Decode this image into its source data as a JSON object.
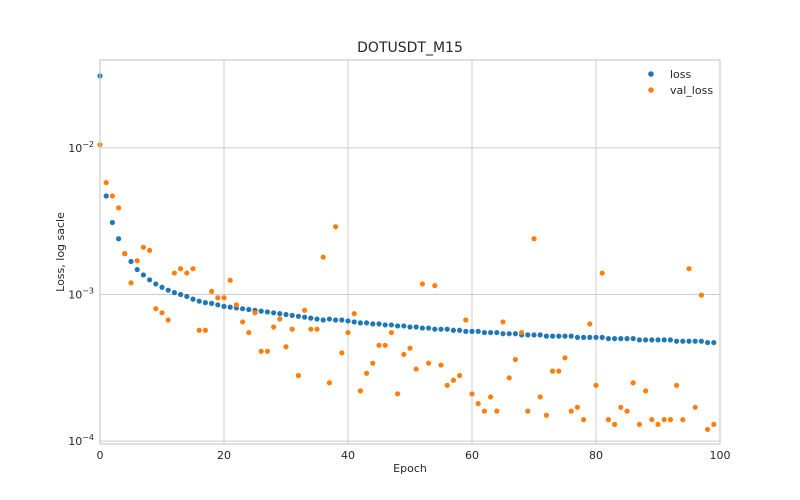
{
  "chart_data": {
    "type": "scatter",
    "title": "DOTUSDT_M15",
    "xlabel": "Epoch",
    "ylabel": "Loss, log sacle",
    "yscale": "log",
    "xlim": [
      0,
      100
    ],
    "ylim": [
      9.55e-05,
      0.0398
    ],
    "xticks": [
      0,
      20,
      40,
      60,
      80,
      100
    ],
    "xtick_labels": [
      "0",
      "20",
      "40",
      "60",
      "80",
      "100"
    ],
    "yticks": [
      0.0001,
      0.001,
      0.01
    ],
    "ytick_labels": [
      {
        "base": "10",
        "exp": "−4"
      },
      {
        "base": "10",
        "exp": "−3"
      },
      {
        "base": "10",
        "exp": "−2"
      }
    ],
    "grid": true,
    "legend_position": "top-right",
    "x": [
      0,
      1,
      2,
      3,
      4,
      5,
      6,
      7,
      8,
      9,
      10,
      11,
      12,
      13,
      14,
      15,
      16,
      17,
      18,
      19,
      20,
      21,
      22,
      23,
      24,
      25,
      26,
      27,
      28,
      29,
      30,
      31,
      32,
      33,
      34,
      35,
      36,
      37,
      38,
      39,
      40,
      41,
      42,
      43,
      44,
      45,
      46,
      47,
      48,
      49,
      50,
      51,
      52,
      53,
      54,
      55,
      56,
      57,
      58,
      59,
      60,
      61,
      62,
      63,
      64,
      65,
      66,
      67,
      68,
      69,
      70,
      71,
      72,
      73,
      74,
      75,
      76,
      77,
      78,
      79,
      80,
      81,
      82,
      83,
      84,
      85,
      86,
      87,
      88,
      89,
      90,
      91,
      92,
      93,
      94,
      95,
      96,
      97,
      98,
      99
    ],
    "series": [
      {
        "name": "loss",
        "color": "#1f77b4",
        "values": [
          0.031,
          0.0047,
          0.0031,
          0.0024,
          0.0019,
          0.00168,
          0.00148,
          0.00136,
          0.00126,
          0.00118,
          0.00112,
          0.00107,
          0.00103,
          0.001,
          0.00097,
          0.00093,
          0.0009,
          0.00088,
          0.00087,
          0.00085,
          0.00083,
          0.00082,
          0.00081,
          0.0008,
          0.00079,
          0.00078,
          0.00077,
          0.00076,
          0.00075,
          0.00074,
          0.00073,
          0.00072,
          0.00071,
          0.0007,
          0.00069,
          0.00068,
          0.00067,
          0.00068,
          0.00067,
          0.00067,
          0.00066,
          0.00065,
          0.00064,
          0.00064,
          0.00063,
          0.00063,
          0.00062,
          0.00062,
          0.00061,
          0.00061,
          0.0006,
          0.0006,
          0.00059,
          0.00059,
          0.00058,
          0.00058,
          0.00058,
          0.00057,
          0.00057,
          0.00056,
          0.00056,
          0.00056,
          0.00055,
          0.00055,
          0.00055,
          0.00054,
          0.00054,
          0.00054,
          0.00053,
          0.00053,
          0.00053,
          0.00053,
          0.00052,
          0.00052,
          0.00052,
          0.00052,
          0.00052,
          0.00051,
          0.00051,
          0.00051,
          0.00051,
          0.00051,
          0.0005,
          0.0005,
          0.0005,
          0.0005,
          0.0005,
          0.00049,
          0.00049,
          0.00049,
          0.00049,
          0.00049,
          0.00049,
          0.00048,
          0.00048,
          0.00048,
          0.00048,
          0.00048,
          0.00047,
          0.00047
        ]
      },
      {
        "name": "val_loss",
        "color": "#ff7f0e",
        "values": [
          0.0105,
          0.0058,
          0.0047,
          0.0039,
          0.0019,
          0.0012,
          0.0017,
          0.0021,
          0.002,
          0.0008,
          0.00075,
          0.00067,
          0.0014,
          0.0015,
          0.0014,
          0.0015,
          0.00057,
          0.00057,
          0.00105,
          0.00095,
          0.00095,
          0.00125,
          0.00085,
          0.00065,
          0.00055,
          0.00075,
          0.00041,
          0.00041,
          0.0006,
          0.00068,
          0.00044,
          0.00058,
          0.00028,
          0.00078,
          0.00058,
          0.00058,
          0.0018,
          0.00025,
          0.0029,
          0.0004,
          0.00055,
          0.00074,
          0.00022,
          0.00029,
          0.00034,
          0.00045,
          0.00045,
          0.00055,
          0.00021,
          0.00039,
          0.00043,
          0.00031,
          0.00118,
          0.00034,
          0.00115,
          0.00033,
          0.00024,
          0.00026,
          0.00028,
          0.00067,
          0.00021,
          0.00018,
          0.00016,
          0.0002,
          0.00016,
          0.00065,
          0.00027,
          0.00036,
          0.00055,
          0.00016,
          0.0024,
          0.0002,
          0.00015,
          0.0003,
          0.0003,
          0.00037,
          0.00016,
          0.00017,
          0.00014,
          0.00063,
          0.00024,
          0.0014,
          0.00014,
          0.00013,
          0.00017,
          0.00016,
          0.00025,
          0.00013,
          0.00022,
          0.00014,
          0.00013,
          0.00014,
          0.00014,
          0.00024,
          0.00014,
          0.0015,
          0.00017,
          0.00099,
          0.00012,
          0.00013
        ]
      }
    ]
  }
}
